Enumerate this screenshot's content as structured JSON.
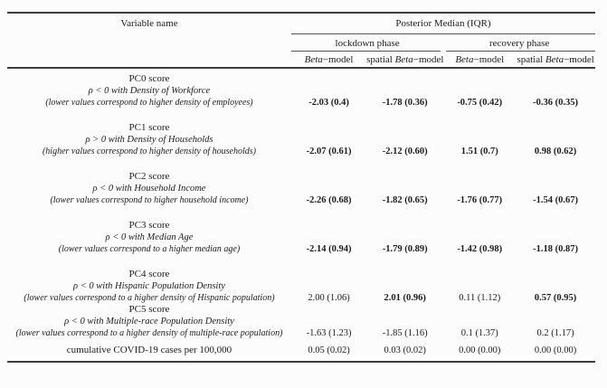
{
  "colors": {
    "text": "#1c1c1c",
    "rule_heavy": "#3d3d3d",
    "rule_light": "#555555",
    "background": "#fcfcfc"
  },
  "table": {
    "columns": {
      "variable_header": "Variable name",
      "group_header": "Posterior Median (IQR)",
      "phases": [
        "lockdown phase",
        "recovery phase"
      ],
      "models": [
        {
          "prefix": "",
          "em": "Beta",
          "suffix": "−model"
        },
        {
          "prefix": "spatial ",
          "em": "Beta",
          "suffix": "−model"
        },
        {
          "prefix": "",
          "em": "Beta",
          "suffix": "−model"
        },
        {
          "prefix": "spatial ",
          "em": "Beta",
          "suffix": "−model"
        }
      ]
    },
    "rows": [
      {
        "name": "PC0 score",
        "relation": "ρ < 0 with Density of Workforce",
        "note": "(lower values correspond to higher density of employees)",
        "values": [
          {
            "text": "-2.03 (0.4)",
            "bold": true
          },
          {
            "text": "-1.78 (0.36)",
            "bold": true
          },
          {
            "text": "-0.75 (0.42)",
            "bold": true
          },
          {
            "text": "-0.36 (0.35)",
            "bold": true
          }
        ]
      },
      {
        "name": "PC1 score",
        "relation": "ρ > 0 with Density of Households",
        "note": "(higher values correspond to higher density of households)",
        "values": [
          {
            "text": "-2.07 (0.61)",
            "bold": true
          },
          {
            "text": "-2.12 (0.60)",
            "bold": true
          },
          {
            "text": "1.51 (0.7)",
            "bold": true
          },
          {
            "text": "0.98 (0.62)",
            "bold": true
          }
        ]
      },
      {
        "name": "PC2 score",
        "relation": "ρ < 0 with Household Income",
        "note": "(lower values correspond to higher household income)",
        "values": [
          {
            "text": "-2.26 (0.68)",
            "bold": true
          },
          {
            "text": "-1.82 (0.65)",
            "bold": true
          },
          {
            "text": "-1.76 (0.77)",
            "bold": true
          },
          {
            "text": "-1.54 (0.67)",
            "bold": true
          }
        ]
      },
      {
        "name": "PC3 score",
        "relation": "ρ < 0 with Median Age",
        "note": "(lower values correspond to a higher median age)",
        "values": [
          {
            "text": "-2.14 (0.94)",
            "bold": true
          },
          {
            "text": "-1.79 (0.89)",
            "bold": true
          },
          {
            "text": "-1.42 (0.98)",
            "bold": true
          },
          {
            "text": "-1.18 (0.87)",
            "bold": true
          }
        ]
      },
      {
        "name": "PC4 score",
        "relation": "ρ < 0 with Hispanic Population Density",
        "note": "(lower values correspond to a higher density of Hispanic population)",
        "values": [
          {
            "text": "2.00 (1.06)",
            "bold": false
          },
          {
            "text": "2.01 (0.96)",
            "bold": true
          },
          {
            "text": "0.11 (1.12)",
            "bold": false
          },
          {
            "text": "0.57 (0.95)",
            "bold": true
          }
        ]
      },
      {
        "name": "PC5 score",
        "relation": "ρ < 0 with Multiple-race Population Density",
        "note": "(lower values correspond to a higher density of multiple-race population)",
        "values": [
          {
            "text": "-1.63 (1.23)",
            "bold": false
          },
          {
            "text": "-1.85 (1.16)",
            "bold": false
          },
          {
            "text": "0.1 (1.37)",
            "bold": false
          },
          {
            "text": "0.2 (1.17)",
            "bold": false
          }
        ]
      },
      {
        "name": "cumulative COVID-19 cases per 100,000",
        "relation": "",
        "note": "",
        "values": [
          {
            "text": "0.05 (0.02)",
            "bold": false
          },
          {
            "text": "0.03 (0.02)",
            "bold": false
          },
          {
            "text": "0.00 (0.00)",
            "bold": false
          },
          {
            "text": "0.00 (0.00)",
            "bold": false
          }
        ]
      }
    ]
  },
  "chart_data": {
    "type": "table",
    "title": "Posterior Median (IQR)",
    "column_groups": [
      "lockdown phase",
      "lockdown phase",
      "recovery phase",
      "recovery phase"
    ],
    "columns": [
      "Beta-model",
      "spatial Beta-model",
      "Beta-model",
      "spatial Beta-model"
    ],
    "rows": [
      {
        "variable": "PC0 score (ρ < 0 with Density of Workforce)",
        "medians": [
          -2.03,
          -1.78,
          -0.75,
          -0.36
        ],
        "iqr": [
          0.4,
          0.36,
          0.42,
          0.35
        ],
        "bold": [
          true,
          true,
          true,
          true
        ]
      },
      {
        "variable": "PC1 score (ρ > 0 with Density of Households)",
        "medians": [
          -2.07,
          -2.12,
          1.51,
          0.98
        ],
        "iqr": [
          0.61,
          0.6,
          0.7,
          0.62
        ],
        "bold": [
          true,
          true,
          true,
          true
        ]
      },
      {
        "variable": "PC2 score (ρ < 0 with Household Income)",
        "medians": [
          -2.26,
          -1.82,
          -1.76,
          -1.54
        ],
        "iqr": [
          0.68,
          0.65,
          0.77,
          0.67
        ],
        "bold": [
          true,
          true,
          true,
          true
        ]
      },
      {
        "variable": "PC3 score (ρ < 0 with Median Age)",
        "medians": [
          -2.14,
          -1.79,
          -1.42,
          -1.18
        ],
        "iqr": [
          0.94,
          0.89,
          0.98,
          0.87
        ],
        "bold": [
          true,
          true,
          true,
          true
        ]
      },
      {
        "variable": "PC4 score (ρ < 0 with Hispanic Population Density)",
        "medians": [
          2.0,
          2.01,
          0.11,
          0.57
        ],
        "iqr": [
          1.06,
          0.96,
          1.12,
          0.95
        ],
        "bold": [
          false,
          true,
          false,
          true
        ]
      },
      {
        "variable": "PC5 score (ρ < 0 with Multiple-race Population Density)",
        "medians": [
          -1.63,
          -1.85,
          0.1,
          0.2
        ],
        "iqr": [
          1.23,
          1.16,
          1.37,
          1.17
        ],
        "bold": [
          false,
          false,
          false,
          false
        ]
      },
      {
        "variable": "cumulative COVID-19 cases per 100,000",
        "medians": [
          0.05,
          0.03,
          0.0,
          0.0
        ],
        "iqr": [
          0.02,
          0.02,
          0.0,
          0.0
        ],
        "bold": [
          false,
          false,
          false,
          false
        ]
      }
    ]
  }
}
